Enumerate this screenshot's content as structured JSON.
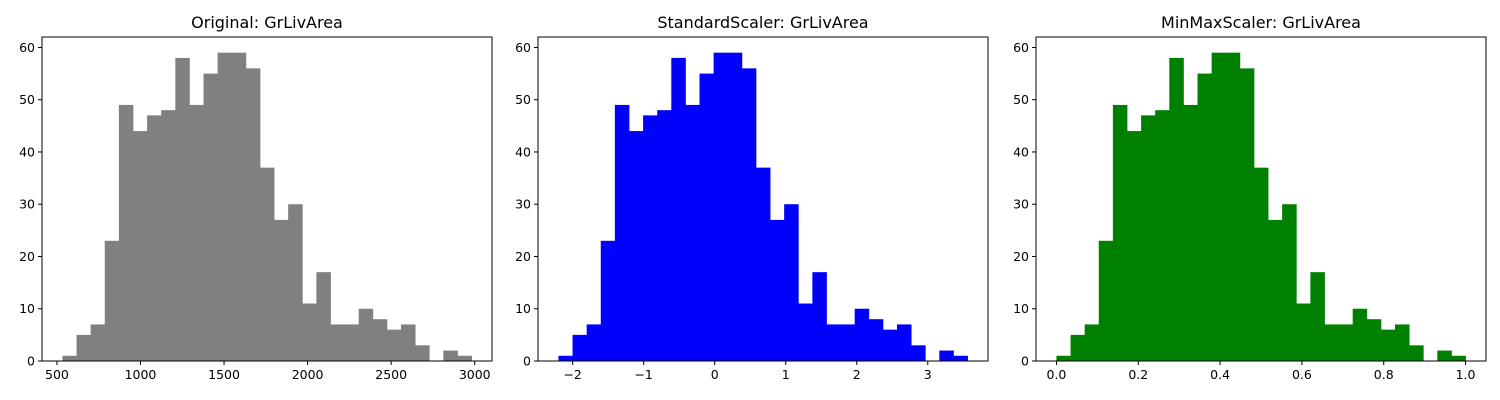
{
  "chart_data": [
    {
      "type": "histogram",
      "title": "Original: GrLivArea",
      "color": "#808080",
      "bin_start": 533.0,
      "bin_end": 2981.0,
      "counts": [
        1,
        5,
        7,
        23,
        49,
        44,
        47,
        48,
        58,
        49,
        55,
        59,
        59,
        56,
        37,
        27,
        30,
        11,
        17,
        7,
        7,
        10,
        8,
        6,
        7,
        3,
        0,
        2,
        1
      ],
      "xlim": [
        410.6,
        3103.4
      ],
      "ylim": [
        0,
        62
      ],
      "xticks": [
        500,
        1000,
        1500,
        2000,
        2500,
        3000
      ],
      "xtick_labels": [
        "500",
        "1000",
        "1500",
        "2000",
        "2500",
        "3000"
      ],
      "yticks": [
        0,
        10,
        20,
        30,
        40,
        50,
        60
      ],
      "ytick_labels": [
        "0",
        "10",
        "20",
        "30",
        "40",
        "50",
        "60"
      ]
    },
    {
      "type": "histogram",
      "title": "StandardScaler: GrLivArea",
      "color": "#0000ff",
      "bin_start": -2.2,
      "bin_end": 3.56,
      "counts": [
        1,
        5,
        7,
        23,
        49,
        44,
        47,
        48,
        58,
        49,
        55,
        59,
        59,
        56,
        37,
        27,
        30,
        11,
        17,
        7,
        7,
        10,
        8,
        6,
        7,
        3,
        0,
        2,
        1
      ],
      "xlim": [
        -2.488,
        3.848
      ],
      "ylim": [
        0,
        62
      ],
      "xticks": [
        -2,
        -1,
        0,
        1,
        2,
        3
      ],
      "xtick_labels": [
        "−2",
        "−1",
        "0",
        "1",
        "2",
        "3"
      ],
      "yticks": [
        0,
        10,
        20,
        30,
        40,
        50,
        60
      ],
      "ytick_labels": [
        "0",
        "10",
        "20",
        "30",
        "40",
        "50",
        "60"
      ]
    },
    {
      "type": "histogram",
      "title": "MinMaxScaler: GrLivArea",
      "color": "#008000",
      "bin_start": 0.0,
      "bin_end": 1.0,
      "counts": [
        1,
        5,
        7,
        23,
        49,
        44,
        47,
        48,
        58,
        49,
        55,
        59,
        59,
        56,
        37,
        27,
        30,
        11,
        17,
        7,
        7,
        10,
        8,
        6,
        7,
        3,
        0,
        2,
        1
      ],
      "xlim": [
        -0.05,
        1.05
      ],
      "ylim": [
        0,
        62
      ],
      "xticks": [
        0.0,
        0.2,
        0.4,
        0.6,
        0.8,
        1.0
      ],
      "xtick_labels": [
        "0.0",
        "0.2",
        "0.4",
        "0.6",
        "0.8",
        "1.0"
      ],
      "yticks": [
        0,
        10,
        20,
        30,
        40,
        50,
        60
      ],
      "ytick_labels": [
        "0",
        "10",
        "20",
        "30",
        "40",
        "50",
        "60"
      ]
    }
  ]
}
